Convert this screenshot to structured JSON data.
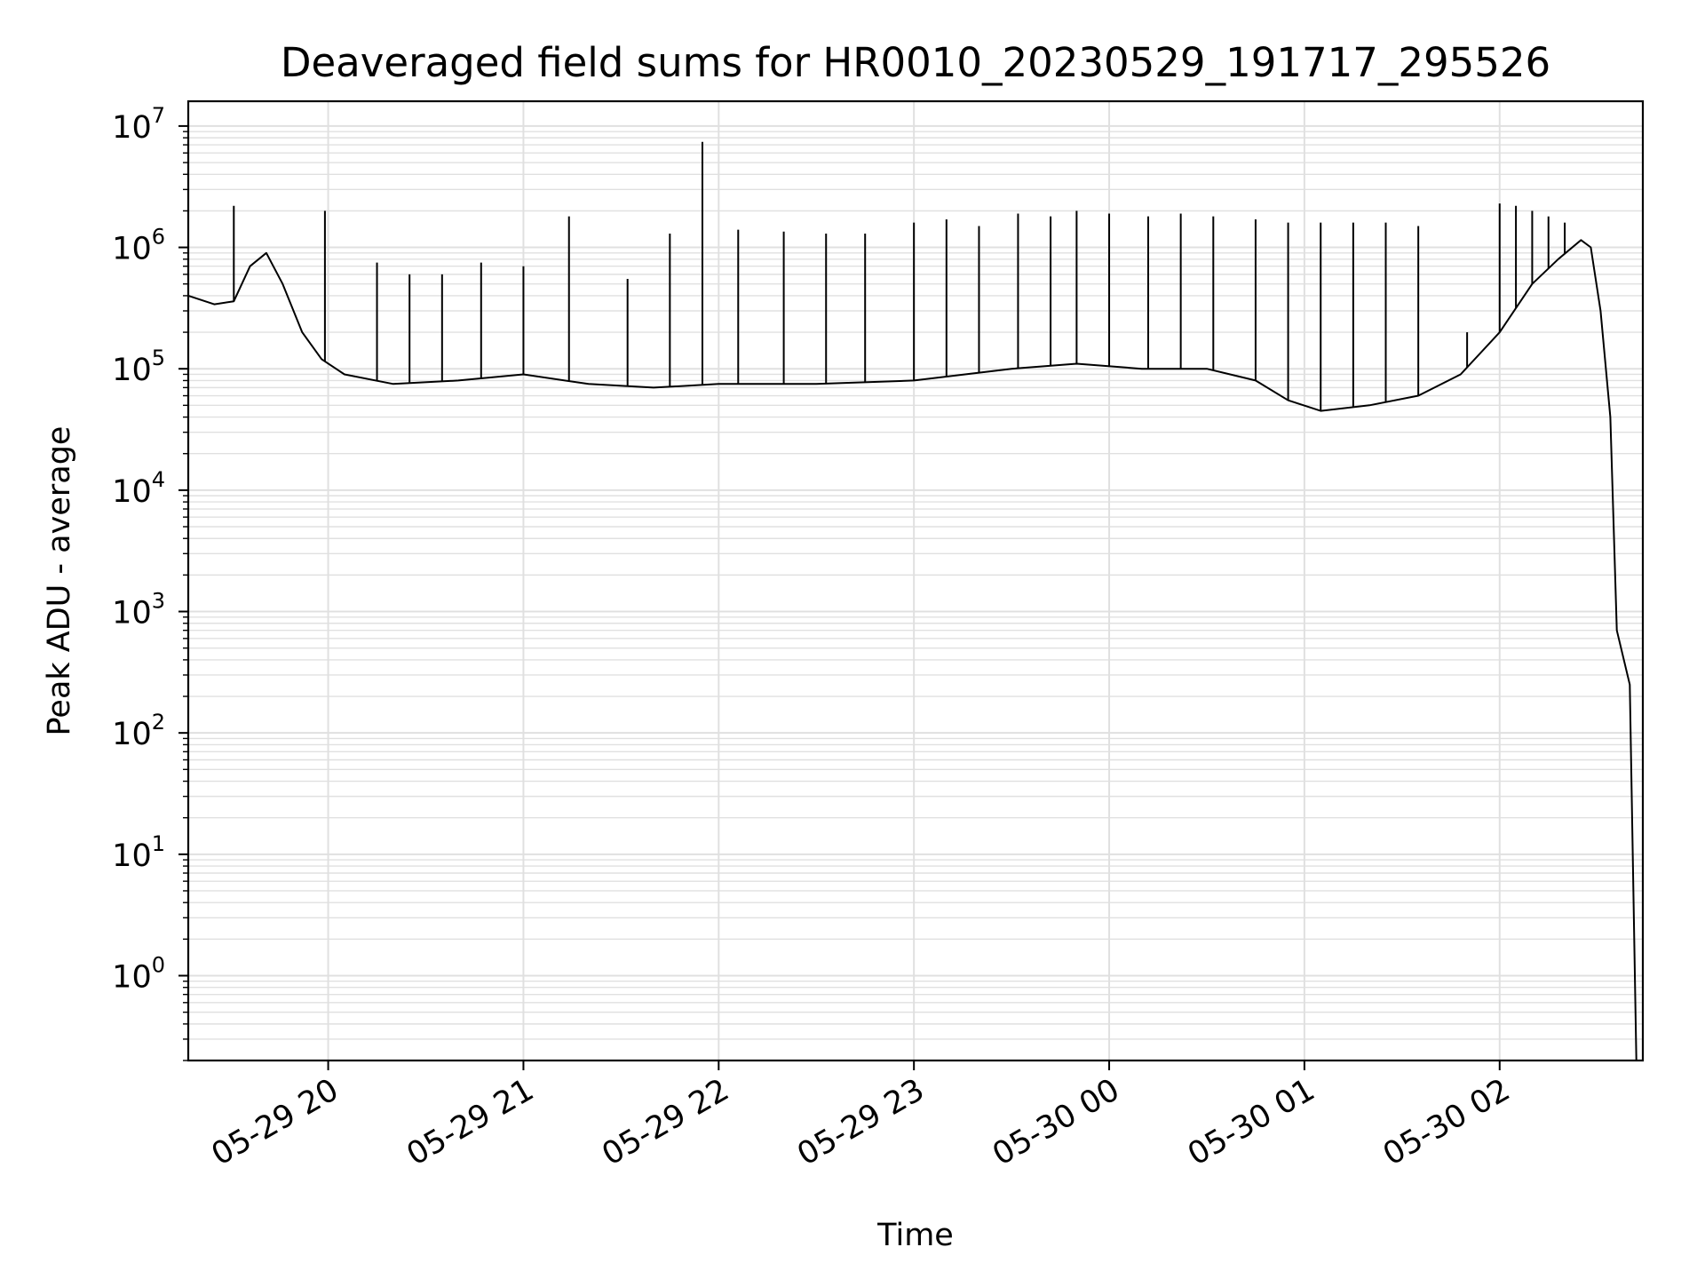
{
  "chart_data": {
    "type": "line",
    "title": "Deaveraged field sums for HR0010_20230529_191717_295526",
    "xlabel": "Time",
    "ylabel": "Peak ADU - average",
    "y_scale": "log",
    "ylim": [
      0.2,
      16000000
    ],
    "xlim": [
      "2023-05-29 19:17",
      "2023-05-30 02:44"
    ],
    "grid": true,
    "legend": "none",
    "line_color": "#000000",
    "grid_color": "#e0e0e0",
    "x_ticks": [
      {
        "t": "2023-05-29 20:00",
        "label": "05-29 20"
      },
      {
        "t": "2023-05-29 21:00",
        "label": "05-29 21"
      },
      {
        "t": "2023-05-29 22:00",
        "label": "05-29 22"
      },
      {
        "t": "2023-05-29 23:00",
        "label": "05-29 23"
      },
      {
        "t": "2023-05-30 00:00",
        "label": "05-30 00"
      },
      {
        "t": "2023-05-30 01:00",
        "label": "05-30 01"
      },
      {
        "t": "2023-05-30 02:00",
        "label": "05-30 02"
      }
    ],
    "y_ticks": [
      {
        "v": 1,
        "base": "10",
        "exp": "0"
      },
      {
        "v": 10,
        "base": "10",
        "exp": "1"
      },
      {
        "v": 100,
        "base": "10",
        "exp": "2"
      },
      {
        "v": 1000,
        "base": "10",
        "exp": "3"
      },
      {
        "v": 10000,
        "base": "10",
        "exp": "4"
      },
      {
        "v": 100000,
        "base": "10",
        "exp": "5"
      },
      {
        "v": 1000000,
        "base": "10",
        "exp": "6"
      },
      {
        "v": 10000000,
        "base": "10",
        "exp": "7"
      }
    ],
    "series": [
      {
        "baseline": [
          [
            "2023-05-29 19:17",
            400000
          ],
          [
            "2023-05-29 19:25",
            340000
          ],
          [
            "2023-05-29 19:31",
            360000
          ],
          [
            "2023-05-29 19:36",
            700000
          ],
          [
            "2023-05-29 19:41",
            900000
          ],
          [
            "2023-05-29 19:46",
            500000
          ],
          [
            "2023-05-29 19:52",
            200000
          ],
          [
            "2023-05-29 19:58",
            120000
          ],
          [
            "2023-05-29 20:05",
            90000
          ],
          [
            "2023-05-29 20:20",
            75000
          ],
          [
            "2023-05-29 20:40",
            80000
          ],
          [
            "2023-05-29 21:00",
            90000
          ],
          [
            "2023-05-29 21:20",
            75000
          ],
          [
            "2023-05-29 21:40",
            70000
          ],
          [
            "2023-05-29 22:00",
            75000
          ],
          [
            "2023-05-29 22:30",
            75000
          ],
          [
            "2023-05-29 23:00",
            80000
          ],
          [
            "2023-05-29 23:30",
            100000
          ],
          [
            "2023-05-29 23:50",
            110000
          ],
          [
            "2023-05-30 00:10",
            100000
          ],
          [
            "2023-05-30 00:30",
            100000
          ],
          [
            "2023-05-30 00:45",
            80000
          ],
          [
            "2023-05-30 00:55",
            55000
          ],
          [
            "2023-05-30 01:05",
            45000
          ],
          [
            "2023-05-30 01:20",
            50000
          ],
          [
            "2023-05-30 01:35",
            60000
          ],
          [
            "2023-05-30 01:48",
            90000
          ],
          [
            "2023-05-30 02:00",
            200000
          ],
          [
            "2023-05-30 02:10",
            500000
          ],
          [
            "2023-05-30 02:18",
            800000
          ],
          [
            "2023-05-30 02:25",
            1150000
          ],
          [
            "2023-05-30 02:28",
            1000000
          ],
          [
            "2023-05-30 02:31",
            300000
          ],
          [
            "2023-05-30 02:34",
            40000
          ],
          [
            "2023-05-30 02:36",
            700
          ],
          [
            "2023-05-30 02:40",
            250
          ],
          [
            "2023-05-30 02:42",
            0.2
          ]
        ],
        "spikes": [
          [
            "2023-05-29 19:31",
            2200000
          ],
          [
            "2023-05-29 19:59",
            2000000
          ],
          [
            "2023-05-29 20:15",
            750000
          ],
          [
            "2023-05-29 20:25",
            600000
          ],
          [
            "2023-05-29 20:35",
            600000
          ],
          [
            "2023-05-29 20:47",
            750000
          ],
          [
            "2023-05-29 21:00",
            700000
          ],
          [
            "2023-05-29 21:14",
            1800000
          ],
          [
            "2023-05-29 21:32",
            550000
          ],
          [
            "2023-05-29 21:45",
            1300000
          ],
          [
            "2023-05-29 21:55",
            7400000
          ],
          [
            "2023-05-29 22:06",
            1400000
          ],
          [
            "2023-05-29 22:20",
            1350000
          ],
          [
            "2023-05-29 22:33",
            1300000
          ],
          [
            "2023-05-29 22:45",
            1300000
          ],
          [
            "2023-05-29 23:00",
            1600000
          ],
          [
            "2023-05-29 23:10",
            1700000
          ],
          [
            "2023-05-29 23:20",
            1500000
          ],
          [
            "2023-05-29 23:32",
            1900000
          ],
          [
            "2023-05-29 23:42",
            1800000
          ],
          [
            "2023-05-29 23:50",
            2000000
          ],
          [
            "2023-05-30 00:00",
            1900000
          ],
          [
            "2023-05-30 00:12",
            1800000
          ],
          [
            "2023-05-30 00:22",
            1900000
          ],
          [
            "2023-05-30 00:32",
            1800000
          ],
          [
            "2023-05-30 00:45",
            1700000
          ],
          [
            "2023-05-30 00:55",
            1600000
          ],
          [
            "2023-05-30 01:05",
            1600000
          ],
          [
            "2023-05-30 01:15",
            1600000
          ],
          [
            "2023-05-30 01:25",
            1600000
          ],
          [
            "2023-05-30 01:35",
            1500000
          ],
          [
            "2023-05-30 01:50",
            200000
          ],
          [
            "2023-05-30 02:00",
            2300000
          ],
          [
            "2023-05-30 02:05",
            2200000
          ],
          [
            "2023-05-30 02:10",
            2000000
          ],
          [
            "2023-05-30 02:15",
            1800000
          ],
          [
            "2023-05-30 02:20",
            1600000
          ]
        ]
      }
    ]
  }
}
